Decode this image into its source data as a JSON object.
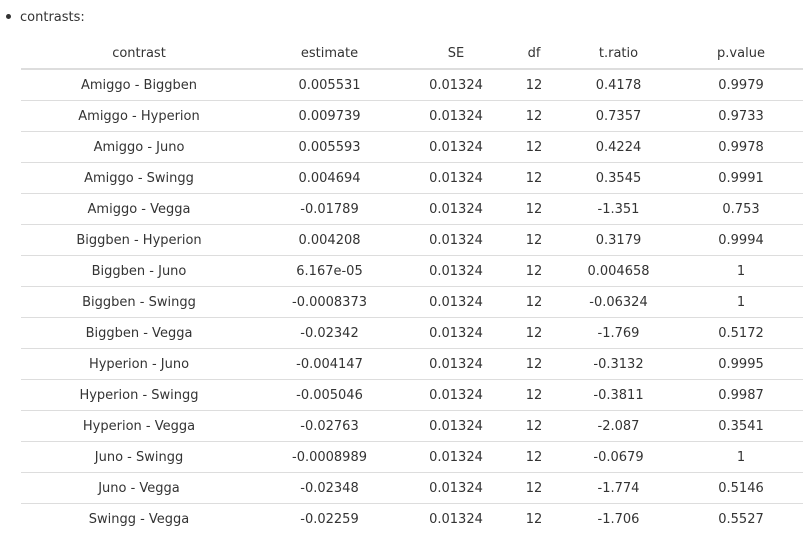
{
  "heading": {
    "label": "contrasts:"
  },
  "table": {
    "headers": [
      "contrast",
      "estimate",
      "SE",
      "df",
      "t.ratio",
      "p.value"
    ],
    "rows": [
      [
        "Amiggo - Biggben",
        "0.005531",
        "0.01324",
        "12",
        "0.4178",
        "0.9979"
      ],
      [
        "Amiggo - Hyperion",
        "0.009739",
        "0.01324",
        "12",
        "0.7357",
        "0.9733"
      ],
      [
        "Amiggo - Juno",
        "0.005593",
        "0.01324",
        "12",
        "0.4224",
        "0.9978"
      ],
      [
        "Amiggo - Swingg",
        "0.004694",
        "0.01324",
        "12",
        "0.3545",
        "0.9991"
      ],
      [
        "Amiggo - Vegga",
        "-0.01789",
        "0.01324",
        "12",
        "-1.351",
        "0.753"
      ],
      [
        "Biggben - Hyperion",
        "0.004208",
        "0.01324",
        "12",
        "0.3179",
        "0.9994"
      ],
      [
        "Biggben - Juno",
        "6.167e-05",
        "0.01324",
        "12",
        "0.004658",
        "1"
      ],
      [
        "Biggben - Swingg",
        "-0.0008373",
        "0.01324",
        "12",
        "-0.06324",
        "1"
      ],
      [
        "Biggben - Vegga",
        "-0.02342",
        "0.01324",
        "12",
        "-1.769",
        "0.5172"
      ],
      [
        "Hyperion - Juno",
        "-0.004147",
        "0.01324",
        "12",
        "-0.3132",
        "0.9995"
      ],
      [
        "Hyperion - Swingg",
        "-0.005046",
        "0.01324",
        "12",
        "-0.3811",
        "0.9987"
      ],
      [
        "Hyperion - Vegga",
        "-0.02763",
        "0.01324",
        "12",
        "-2.087",
        "0.3541"
      ],
      [
        "Juno - Swingg",
        "-0.0008989",
        "0.01324",
        "12",
        "-0.0679",
        "1"
      ],
      [
        "Juno - Vegga",
        "-0.02348",
        "0.01324",
        "12",
        "-1.774",
        "0.5146"
      ],
      [
        "Swingg - Vegga",
        "-0.02259",
        "0.01324",
        "12",
        "-1.706",
        "0.5527"
      ]
    ]
  },
  "colors": {
    "text": "#333333",
    "rule": "#dddddd",
    "background": "#ffffff"
  }
}
